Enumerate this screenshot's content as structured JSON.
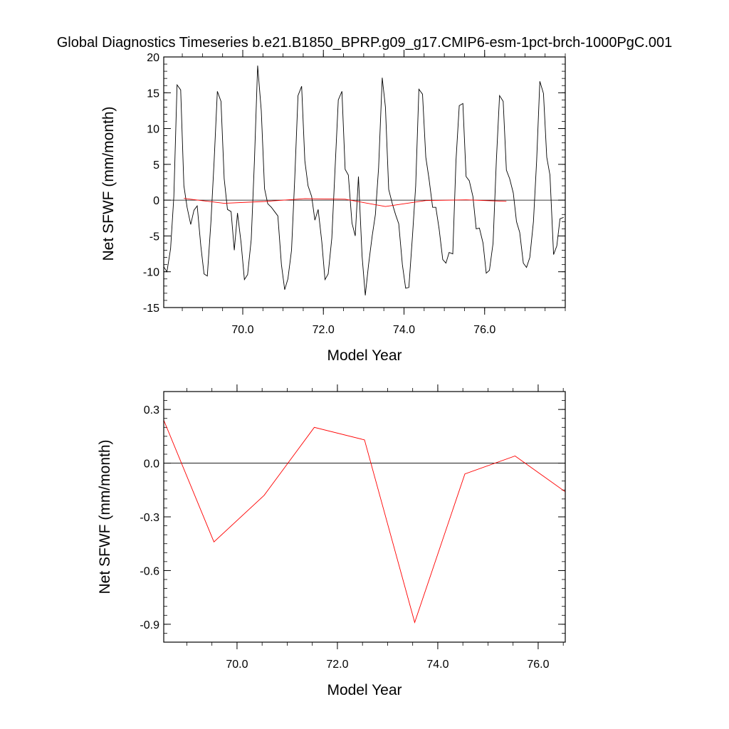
{
  "chart_data": [
    {
      "type": "line",
      "title": "Global Diagnostics Timeseries b.e21.B1850_BPRP.g09_g17.CMIP6-esm-1pct-brch-1000PgC.001",
      "xlabel": "Model Year",
      "ylabel": "Net SFWF (mm/month)",
      "xlim": [
        68.04,
        78.0
      ],
      "ylim": [
        -15,
        20
      ],
      "xticks": [
        "70.0",
        "72.0",
        "74.0",
        "76.0"
      ],
      "yticks": [
        "-15",
        "-10",
        "-5",
        "0",
        "5",
        "10",
        "15",
        "20"
      ],
      "reference_line": 0,
      "series": [
        {
          "color": "#000000",
          "x": [
            68.04,
            68.12,
            68.21,
            68.29,
            68.37,
            68.46,
            68.54,
            68.62,
            68.71,
            68.79,
            68.87,
            68.96,
            69.04,
            69.12,
            69.21,
            69.29,
            69.37,
            69.46,
            69.54,
            69.62,
            69.71,
            69.79,
            69.87,
            69.96,
            70.04,
            70.12,
            70.21,
            70.29,
            70.37,
            70.46,
            70.54,
            70.62,
            70.71,
            70.79,
            70.87,
            70.96,
            71.04,
            71.12,
            71.21,
            71.29,
            71.37,
            71.46,
            71.54,
            71.62,
            71.71,
            71.79,
            71.87,
            71.96,
            72.04,
            72.12,
            72.21,
            72.29,
            72.37,
            72.46,
            72.54,
            72.62,
            72.71,
            72.79,
            72.87,
            72.96,
            73.04,
            73.12,
            73.21,
            73.29,
            73.37,
            73.46,
            73.54,
            73.62,
            73.71,
            73.79,
            73.87,
            73.96,
            74.04,
            74.12,
            74.21,
            74.29,
            74.37,
            74.46,
            74.54,
            74.62,
            74.71,
            74.79,
            74.87,
            74.96,
            75.04,
            75.12,
            75.21,
            75.29,
            75.37,
            75.46,
            75.54,
            75.62,
            75.71,
            75.79,
            75.87,
            75.96,
            76.04,
            76.12,
            76.21,
            76.29,
            76.37,
            76.46,
            76.54,
            76.62,
            76.71,
            76.79,
            76.87,
            76.96,
            77.04,
            77.12,
            77.21,
            77.29,
            77.37,
            77.46,
            77.54,
            77.62,
            77.71,
            77.79,
            77.87,
            77.96
          ],
          "y": [
            -9.3,
            -10.0,
            -6.8,
            0.5,
            16.1,
            15.4,
            2.0,
            -1.0,
            -3.4,
            -1.4,
            -0.8,
            -6.4,
            -10.3,
            -10.6,
            -3.0,
            5.5,
            15.2,
            13.8,
            3.0,
            -1.3,
            -1.6,
            -7.0,
            -1.8,
            -6.0,
            -11.1,
            -10.4,
            -5.5,
            5.5,
            18.8,
            12.5,
            1.6,
            -0.5,
            -1.0,
            -1.6,
            -2.2,
            -9.0,
            -12.5,
            -11.0,
            -7.0,
            3.0,
            14.6,
            15.9,
            5.5,
            2.0,
            0.5,
            -2.8,
            -1.3,
            -5.8,
            -11.1,
            -10.3,
            -5.3,
            4.5,
            14.0,
            15.2,
            4.3,
            3.5,
            -3.2,
            -5.0,
            3.3,
            -7.8,
            -13.3,
            -9.0,
            -5.0,
            -2.0,
            4.5,
            17.1,
            13.0,
            1.5,
            -0.5,
            -2.0,
            -3.3,
            -9.0,
            -12.3,
            -12.2,
            -5.0,
            2.0,
            15.5,
            14.8,
            6.0,
            3.0,
            -1.0,
            -1.0,
            -4.0,
            -8.3,
            -8.8,
            -7.3,
            -7.5,
            5.5,
            13.2,
            13.5,
            3.3,
            2.7,
            0.5,
            -4.0,
            -3.9,
            -6.0,
            -10.2,
            -9.8,
            -6.0,
            5.5,
            14.6,
            13.8,
            4.2,
            3.0,
            1.0,
            -3.0,
            -4.5,
            -8.8,
            -9.4,
            -8.0,
            -3.0,
            5.5,
            16.6,
            14.9,
            6.0,
            3.5,
            -7.6,
            -6.4,
            -2.6,
            -2.4
          ]
        },
        {
          "color": "#ff0000",
          "x": [
            68.54,
            69.54,
            70.54,
            71.54,
            72.54,
            73.54,
            74.54,
            75.54,
            76.54
          ],
          "y": [
            0.24,
            -0.44,
            -0.18,
            0.2,
            0.13,
            -0.89,
            -0.06,
            0.04,
            -0.16
          ]
        }
      ]
    },
    {
      "type": "line",
      "xlabel": "Model Year",
      "ylabel": "Net SFWF (mm/month)",
      "xlim": [
        68.54,
        76.54
      ],
      "ylim": [
        -1.0,
        0.4
      ],
      "xticks": [
        "70.0",
        "72.0",
        "74.0",
        "76.0"
      ],
      "yticks": [
        "-0.9",
        "-0.6",
        "-0.3",
        "0.0",
        "0.3"
      ],
      "reference_line": 0,
      "series": [
        {
          "color": "#ff0000",
          "x": [
            68.54,
            69.54,
            70.54,
            71.54,
            72.54,
            73.54,
            74.54,
            75.54,
            76.54
          ],
          "y": [
            0.24,
            -0.44,
            -0.18,
            0.2,
            0.13,
            -0.89,
            -0.06,
            0.04,
            -0.16
          ]
        }
      ]
    }
  ]
}
